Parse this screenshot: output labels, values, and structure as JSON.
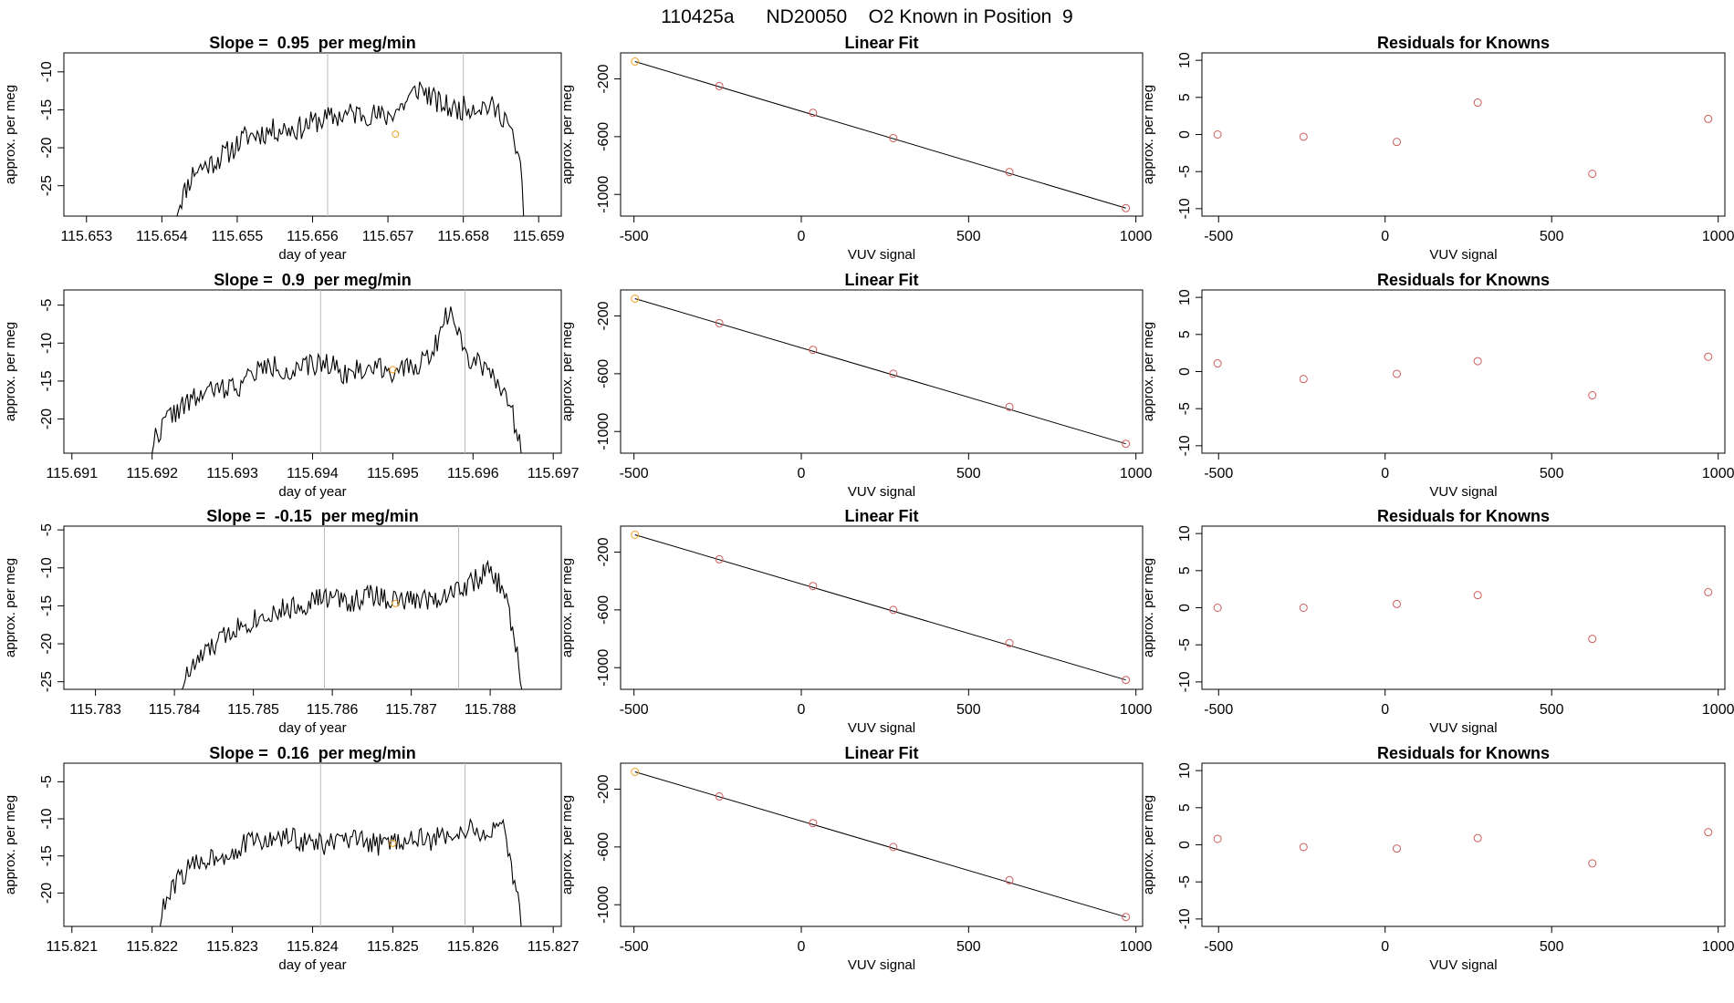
{
  "page_title": "110425a      ND20050    O2 Known in Position  9",
  "colors": {
    "trace": "#000000",
    "marker_line": "#bbbbbb",
    "known_points": "#cd5c5c",
    "highlight_points": "#f0a020",
    "fit_line": "#000000"
  },
  "chart_data": [
    {
      "type": "line",
      "row": 1,
      "title": "Slope =  0.95  per meg/min",
      "xlabel": "day of year",
      "ylabel": "approx. per meg",
      "xlim": [
        115.6527,
        115.6593
      ],
      "ylim": [
        -29,
        -7.5
      ],
      "xticks": [
        "115.653",
        "115.654",
        "115.655",
        "115.656",
        "115.657",
        "115.658",
        "115.659"
      ],
      "yticks": [
        "-10",
        "-15",
        "-20",
        "-25"
      ],
      "vlines": [
        115.6562,
        115.658
      ],
      "trace_start": 115.6542,
      "trace_end": 115.6588,
      "trace_levels": [
        -28,
        -23,
        -22,
        -20.5,
        -18.5,
        -18,
        -17.5,
        -17.5,
        -16.5,
        -16,
        -15.5,
        -15.5,
        -16,
        -14.5,
        -12,
        -14,
        -15,
        -14.5,
        -14.5,
        -16,
        -24
      ],
      "noise": 1.6,
      "seed": 11,
      "highlight_point": {
        "x": 115.6571,
        "y": -18.2
      }
    },
    {
      "type": "scatter",
      "row": 1,
      "title": "Linear Fit",
      "xlabel": "VUV signal",
      "ylabel": "approx. per meg",
      "xlim": [
        -540,
        1020
      ],
      "ylim": [
        -1150,
        -20
      ],
      "xticks": [
        "-500",
        "0",
        "500",
        "1000"
      ],
      "yticks": [
        "-200",
        "-600",
        "-1000"
      ],
      "points": [
        [
          -497,
          -80
        ],
        [
          -245,
          -250
        ],
        [
          35,
          -435
        ],
        [
          275,
          -610
        ],
        [
          622,
          -845
        ],
        [
          970,
          -1095
        ]
      ],
      "highlight": [
        0
      ],
      "fit": {
        "x0": -497,
        "y0": -80,
        "x1": 970,
        "y1": -1095
      }
    },
    {
      "type": "scatter",
      "row": 1,
      "title": "Residuals for Knowns",
      "xlabel": "VUV signal",
      "ylabel": "approx. per meg",
      "xlim": [
        -550,
        1020
      ],
      "ylim": [
        -11,
        11
      ],
      "xticks": [
        "-500",
        "0",
        "500",
        "1000"
      ],
      "yticks": [
        "10",
        "5",
        "0",
        "-5",
        "-10"
      ],
      "points": [
        [
          -503,
          0
        ],
        [
          -245,
          -0.3
        ],
        [
          35,
          -1
        ],
        [
          278,
          4.3
        ],
        [
          622,
          -5.3
        ],
        [
          970,
          2.1
        ]
      ]
    },
    {
      "type": "line",
      "row": 2,
      "title": "Slope =  0.9  per meg/min",
      "xlabel": "day of year",
      "ylabel": "approx. per meg",
      "xlim": [
        115.6909,
        115.6971
      ],
      "ylim": [
        -24.5,
        -3
      ],
      "xticks": [
        "115.691",
        "115.692",
        "115.693",
        "115.694",
        "115.695",
        "115.696",
        "115.697"
      ],
      "yticks": [
        "-5",
        "-10",
        "-15",
        "-20"
      ],
      "vlines": [
        115.6941,
        115.6959
      ],
      "trace_start": 115.692,
      "trace_end": 115.6966,
      "trace_levels": [
        -23,
        -19.5,
        -18,
        -16.5,
        -16,
        -15.5,
        -13.5,
        -13,
        -14,
        -13,
        -12.5,
        -14,
        -13.5,
        -13,
        -14,
        -13,
        -11,
        -5,
        -12,
        -13,
        -16,
        -23
      ],
      "noise": 1.5,
      "seed": 22,
      "highlight_point": {
        "x": 115.695,
        "y": -13.5
      }
    },
    {
      "type": "scatter",
      "row": 2,
      "title": "Linear Fit",
      "xlabel": "VUV signal",
      "ylabel": "approx. per meg",
      "xlim": [
        -540,
        1020
      ],
      "ylim": [
        -1150,
        -20
      ],
      "xticks": [
        "-500",
        "0",
        "500",
        "1000"
      ],
      "yticks": [
        "-200",
        "-600",
        "-1000"
      ],
      "points": [
        [
          -497,
          -80
        ],
        [
          -245,
          -250
        ],
        [
          35,
          -435
        ],
        [
          275,
          -600
        ],
        [
          622,
          -830
        ],
        [
          970,
          -1085
        ]
      ],
      "highlight": [
        0
      ],
      "fit": {
        "x0": -497,
        "y0": -80,
        "x1": 970,
        "y1": -1085
      }
    },
    {
      "type": "scatter",
      "row": 2,
      "title": "Residuals for Knowns",
      "xlabel": "VUV signal",
      "ylabel": "approx. per meg",
      "xlim": [
        -550,
        1020
      ],
      "ylim": [
        -11,
        11
      ],
      "xticks": [
        "-500",
        "0",
        "500",
        "1000"
      ],
      "yticks": [
        "10",
        "5",
        "0",
        "-5",
        "-10"
      ],
      "points": [
        [
          -503,
          1.1
        ],
        [
          -245,
          -1
        ],
        [
          35,
          -0.3
        ],
        [
          278,
          1.4
        ],
        [
          622,
          -3.2
        ],
        [
          970,
          2
        ]
      ]
    },
    {
      "type": "line",
      "row": 3,
      "title": "Slope =  -0.15  per meg/min",
      "xlabel": "day of year",
      "ylabel": "approx. per meg",
      "xlim": [
        115.7826,
        115.7889
      ],
      "ylim": [
        -26,
        -4.5
      ],
      "xticks": [
        "115.783",
        "115.784",
        "115.785",
        "115.786",
        "115.787",
        "115.788"
      ],
      "yticks": [
        "-5",
        "-10",
        "-15",
        "-20",
        "-25"
      ],
      "vlines": [
        115.7859,
        115.7876
      ],
      "trace_start": 115.7841,
      "trace_end": 115.7884,
      "trace_levels": [
        -25,
        -22,
        -20,
        -18,
        -17,
        -16,
        -15.5,
        -15,
        -14,
        -14,
        -14.5,
        -13.5,
        -14,
        -14.5,
        -14,
        -14,
        -13,
        -12,
        -10.5,
        -13,
        -25
      ],
      "noise": 1.5,
      "seed": 33,
      "highlight_point": {
        "x": 115.7868,
        "y": -14.7
      }
    },
    {
      "type": "scatter",
      "row": 3,
      "title": "Linear Fit",
      "xlabel": "VUV signal",
      "ylabel": "approx. per meg",
      "xlim": [
        -540,
        1020
      ],
      "ylim": [
        -1150,
        -20
      ],
      "xticks": [
        "-500",
        "0",
        "500",
        "1000"
      ],
      "yticks": [
        "-200",
        "-600",
        "-1000"
      ],
      "points": [
        [
          -497,
          -80
        ],
        [
          -245,
          -250
        ],
        [
          35,
          -435
        ],
        [
          275,
          -600
        ],
        [
          622,
          -830
        ],
        [
          970,
          -1085
        ]
      ],
      "highlight": [
        0
      ],
      "fit": {
        "x0": -497,
        "y0": -80,
        "x1": 970,
        "y1": -1085
      }
    },
    {
      "type": "scatter",
      "row": 3,
      "title": "Residuals for Knowns",
      "xlabel": "VUV signal",
      "ylabel": "approx. per meg",
      "xlim": [
        -550,
        1020
      ],
      "ylim": [
        -11,
        11
      ],
      "xticks": [
        "-500",
        "0",
        "500",
        "1000"
      ],
      "yticks": [
        "10",
        "5",
        "0",
        "-5",
        "-10"
      ],
      "points": [
        [
          -503,
          0
        ],
        [
          -245,
          0
        ],
        [
          35,
          0.5
        ],
        [
          278,
          1.7
        ],
        [
          622,
          -4.2
        ],
        [
          970,
          2.1
        ]
      ]
    },
    {
      "type": "line",
      "row": 4,
      "title": "Slope =  0.16  per meg/min",
      "xlabel": "day of year",
      "ylabel": "approx. per meg",
      "xlim": [
        115.8209,
        115.8271
      ],
      "ylim": [
        -24.5,
        -2.5
      ],
      "xticks": [
        "115.821",
        "115.822",
        "115.823",
        "115.824",
        "115.825",
        "115.826",
        "115.827"
      ],
      "yticks": [
        "-5",
        "-10",
        "-15",
        "-20"
      ],
      "vlines": [
        115.8241,
        115.8259
      ],
      "trace_start": 115.8221,
      "trace_end": 115.8266,
      "trace_levels": [
        -23,
        -18,
        -16,
        -15,
        -14.5,
        -13,
        -13,
        -12.5,
        -13,
        -13.5,
        -13,
        -13,
        -13.5,
        -13,
        -12.5,
        -13,
        -12,
        -11.5,
        -12,
        -11.5,
        -23
      ],
      "noise": 1.5,
      "seed": 44,
      "highlight_point": {
        "x": 115.825,
        "y": -13.3
      }
    },
    {
      "type": "scatter",
      "row": 4,
      "title": "Linear Fit",
      "xlabel": "VUV signal",
      "ylabel": "approx. per meg",
      "xlim": [
        -540,
        1020
      ],
      "ylim": [
        -1150,
        -20
      ],
      "xticks": [
        "-500",
        "0",
        "500",
        "1000"
      ],
      "yticks": [
        "-200",
        "-600",
        "-1000"
      ],
      "points": [
        [
          -497,
          -80
        ],
        [
          -245,
          -250
        ],
        [
          35,
          -435
        ],
        [
          275,
          -600
        ],
        [
          622,
          -830
        ],
        [
          970,
          -1085
        ]
      ],
      "highlight": [
        0
      ],
      "fit": {
        "x0": -497,
        "y0": -80,
        "x1": 970,
        "y1": -1085
      }
    },
    {
      "type": "scatter",
      "row": 4,
      "title": "Residuals for Knowns",
      "xlabel": "VUV signal",
      "ylabel": "approx. per meg",
      "xlim": [
        -550,
        1020
      ],
      "ylim": [
        -11,
        11
      ],
      "xticks": [
        "-500",
        "0",
        "500",
        "1000"
      ],
      "yticks": [
        "10",
        "5",
        "0",
        "-5",
        "-10"
      ],
      "points": [
        [
          -503,
          0.8
        ],
        [
          -245,
          -0.3
        ],
        [
          35,
          -0.5
        ],
        [
          278,
          0.9
        ],
        [
          622,
          -2.5
        ],
        [
          970,
          1.7
        ]
      ]
    }
  ]
}
